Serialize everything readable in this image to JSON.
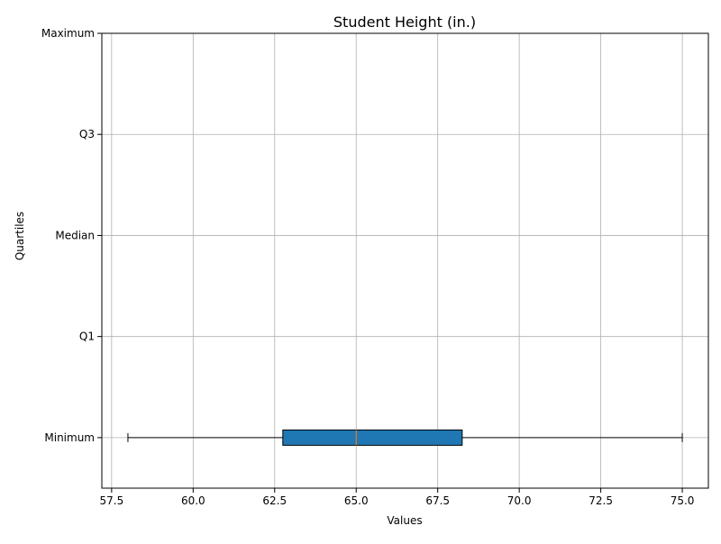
{
  "chart_data": {
    "type": "boxplot",
    "orientation": "horizontal",
    "title": "Student Height (in.)",
    "xlabel": "Values",
    "ylabel": "Quartiles",
    "xlim": [
      57.2,
      75.8
    ],
    "x_ticks": [
      57.5,
      60.0,
      62.5,
      65.0,
      67.5,
      70.0,
      72.5,
      75.0
    ],
    "y_categories": [
      "Minimum",
      "Q1",
      "Median",
      "Q3",
      "Maximum"
    ],
    "grid": true,
    "box": {
      "category": "Minimum",
      "whisker_low": 58,
      "q1": 62.75,
      "median": 65,
      "q3": 68.25,
      "whisker_high": 75
    },
    "colors": {
      "box_fill": "#1f77b4",
      "median_line": "#ff7f0e",
      "grid": "#b0b0b0",
      "axis": "#000000"
    }
  }
}
